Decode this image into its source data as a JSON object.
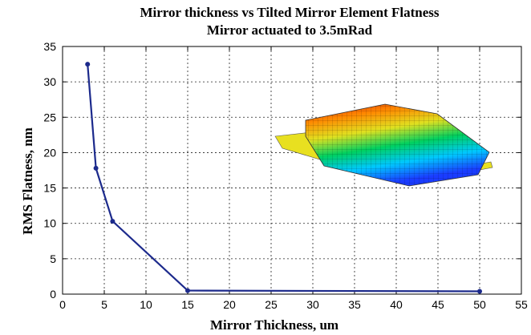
{
  "chart_data": {
    "type": "line",
    "title": "Mirror thickness vs Tilted Mirror Element Flatness",
    "subtitle": "Mirror actuated to 3.5mRad",
    "xlabel": "Mirror Thickness, um",
    "ylabel": "RMS Flatness, nm",
    "xlim": [
      0,
      55
    ],
    "ylim": [
      0,
      35
    ],
    "xticks": [
      0,
      5,
      10,
      15,
      20,
      25,
      30,
      35,
      40,
      45,
      50,
      55
    ],
    "yticks": [
      0,
      5,
      10,
      15,
      20,
      25,
      30,
      35
    ],
    "grid": true,
    "grid_style": "dotted",
    "series": [
      {
        "x": [
          3,
          4,
          6,
          15,
          50
        ],
        "y": [
          32.5,
          17.8,
          10.3,
          0.5,
          0.4
        ],
        "color": "#1c2a8c"
      }
    ],
    "inset": {
      "description_icon": "mirror-surface-mesh-icon",
      "colors": [
        "#1a3cff",
        "#00c8ff",
        "#00d060",
        "#e0e020",
        "#ff8800",
        "#e02010"
      ]
    }
  }
}
